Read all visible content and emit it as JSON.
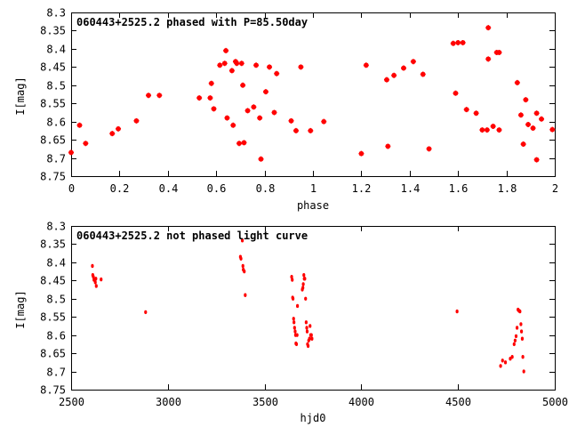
{
  "chart_data": [
    {
      "type": "scatter",
      "title": "060443+2525.2 phased with P=85.50day",
      "xlabel": "phase",
      "ylabel": "I[mag]",
      "xlim": [
        0,
        2
      ],
      "ylim": [
        8.75,
        8.3
      ],
      "y_inverted": true,
      "grid": false,
      "legend": "none",
      "marker": "star",
      "color": "#ff0000",
      "x_ticks": [
        "0",
        "0.2",
        "0.4",
        "0.6",
        "0.8",
        "1",
        "1.2",
        "1.4",
        "1.6",
        "1.8",
        "2"
      ],
      "y_ticks": [
        "8.3",
        "8.35",
        "8.4",
        "8.45",
        "8.5",
        "8.55",
        "8.6",
        "8.65",
        "8.7",
        "8.75"
      ],
      "points": [
        [
          0.0,
          8.685
        ],
        [
          0.035,
          8.61
        ],
        [
          0.06,
          8.66
        ],
        [
          0.17,
          8.633
        ],
        [
          0.195,
          8.62
        ],
        [
          0.27,
          8.598
        ],
        [
          0.32,
          8.528
        ],
        [
          0.365,
          8.528
        ],
        [
          0.53,
          8.535
        ],
        [
          0.575,
          8.535
        ],
        [
          0.58,
          8.495
        ],
        [
          0.59,
          8.565
        ],
        [
          0.615,
          8.445
        ],
        [
          0.635,
          8.44
        ],
        [
          0.64,
          8.405
        ],
        [
          0.645,
          8.59
        ],
        [
          0.665,
          8.46
        ],
        [
          0.67,
          8.61
        ],
        [
          0.68,
          8.435
        ],
        [
          0.685,
          8.44
        ],
        [
          0.695,
          8.66
        ],
        [
          0.705,
          8.44
        ],
        [
          0.71,
          8.5
        ],
        [
          0.715,
          8.658
        ],
        [
          0.73,
          8.57
        ],
        [
          0.755,
          8.56
        ],
        [
          0.765,
          8.445
        ],
        [
          0.78,
          8.59
        ],
        [
          0.785,
          8.703
        ],
        [
          0.805,
          8.518
        ],
        [
          0.82,
          8.45
        ],
        [
          0.84,
          8.575
        ],
        [
          0.85,
          8.468
        ],
        [
          0.91,
          8.598
        ],
        [
          0.93,
          8.625
        ],
        [
          0.95,
          8.45
        ],
        [
          0.99,
          8.625
        ],
        [
          1.045,
          8.6
        ],
        [
          1.2,
          8.688
        ],
        [
          1.22,
          8.445
        ],
        [
          1.305,
          8.485
        ],
        [
          1.31,
          8.668
        ],
        [
          1.335,
          8.473
        ],
        [
          1.375,
          8.453
        ],
        [
          1.415,
          8.435
        ],
        [
          1.455,
          8.47
        ],
        [
          1.48,
          8.675
        ],
        [
          1.58,
          8.385
        ],
        [
          1.59,
          8.522
        ],
        [
          1.6,
          8.383
        ],
        [
          1.62,
          8.383
        ],
        [
          1.635,
          8.567
        ],
        [
          1.675,
          8.577
        ],
        [
          1.7,
          8.623
        ],
        [
          1.72,
          8.623
        ],
        [
          1.725,
          8.342
        ],
        [
          1.725,
          8.428
        ],
        [
          1.745,
          8.613
        ],
        [
          1.76,
          8.41
        ],
        [
          1.77,
          8.41
        ],
        [
          1.77,
          8.623
        ],
        [
          1.845,
          8.493
        ],
        [
          1.86,
          8.582
        ],
        [
          1.87,
          8.662
        ],
        [
          1.88,
          8.54
        ],
        [
          1.89,
          8.608
        ],
        [
          1.91,
          8.618
        ],
        [
          1.925,
          8.705
        ],
        [
          1.925,
          8.577
        ],
        [
          1.945,
          8.593
        ],
        [
          1.99,
          8.622
        ]
      ]
    },
    {
      "type": "scatter",
      "title": "060443+2525.2 not phased light curve",
      "xlabel": "hjd0",
      "ylabel": "I[mag]",
      "xlim": [
        2500,
        5000
      ],
      "ylim": [
        8.75,
        8.3
      ],
      "y_inverted": true,
      "grid": false,
      "legend": "none",
      "marker": "dot",
      "color": "#ff0000",
      "x_ticks": [
        "2500",
        "3000",
        "3500",
        "4000",
        "4500",
        "5000"
      ],
      "y_ticks": [
        "8.3",
        "8.35",
        "8.4",
        "8.45",
        "8.5",
        "8.55",
        "8.6",
        "8.65",
        "8.7",
        "8.75"
      ],
      "points": [
        [
          2610,
          8.41
        ],
        [
          2612,
          8.435
        ],
        [
          2615,
          8.44
        ],
        [
          2618,
          8.448
        ],
        [
          2625,
          8.455
        ],
        [
          2628,
          8.445
        ],
        [
          2630,
          8.465
        ],
        [
          2655,
          8.447
        ],
        [
          2885,
          8.537
        ],
        [
          3375,
          8.385
        ],
        [
          3378,
          8.39
        ],
        [
          3385,
          8.34
        ],
        [
          3388,
          8.41
        ],
        [
          3390,
          8.42
        ],
        [
          3395,
          8.425
        ],
        [
          3400,
          8.49
        ],
        [
          3640,
          8.44
        ],
        [
          3643,
          8.448
        ],
        [
          3645,
          8.497
        ],
        [
          3647,
          8.5
        ],
        [
          3650,
          8.555
        ],
        [
          3652,
          8.565
        ],
        [
          3655,
          8.58
        ],
        [
          3658,
          8.59
        ],
        [
          3660,
          8.6
        ],
        [
          3662,
          8.623
        ],
        [
          3665,
          8.625
        ],
        [
          3668,
          8.6
        ],
        [
          3670,
          8.52
        ],
        [
          3695,
          8.475
        ],
        [
          3698,
          8.47
        ],
        [
          3700,
          8.46
        ],
        [
          3703,
          8.435
        ],
        [
          3705,
          8.445
        ],
        [
          3708,
          8.445
        ],
        [
          3712,
          8.5
        ],
        [
          3715,
          8.565
        ],
        [
          3718,
          8.58
        ],
        [
          3720,
          8.59
        ],
        [
          3722,
          8.625
        ],
        [
          3725,
          8.63
        ],
        [
          3728,
          8.615
        ],
        [
          3732,
          8.61
        ],
        [
          3735,
          8.575
        ],
        [
          3738,
          8.6
        ],
        [
          3742,
          8.6
        ],
        [
          3745,
          8.61
        ],
        [
          4495,
          8.535
        ],
        [
          4720,
          8.685
        ],
        [
          4730,
          8.67
        ],
        [
          4745,
          8.675
        ],
        [
          4770,
          8.665
        ],
        [
          4780,
          8.66
        ],
        [
          4790,
          8.625
        ],
        [
          4795,
          8.615
        ],
        [
          4800,
          8.603
        ],
        [
          4805,
          8.58
        ],
        [
          4810,
          8.53
        ],
        [
          4815,
          8.533
        ],
        [
          4820,
          8.535
        ],
        [
          4825,
          8.57
        ],
        [
          4828,
          8.59
        ],
        [
          4832,
          8.61
        ],
        [
          4835,
          8.66
        ],
        [
          4840,
          8.7
        ]
      ]
    }
  ]
}
